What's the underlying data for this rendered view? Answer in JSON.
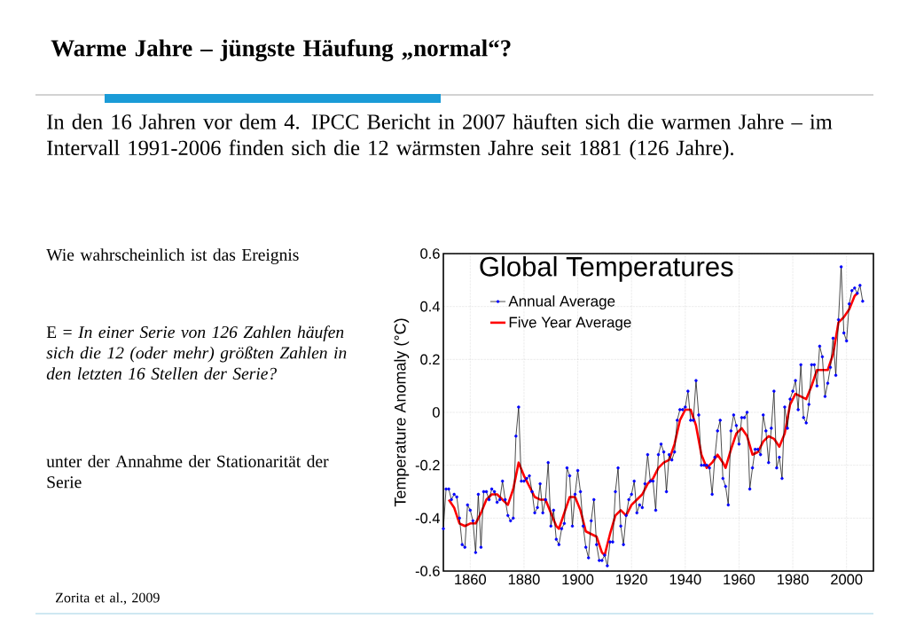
{
  "chart_data": {
    "type": "line",
    "title": "Global Temperatures",
    "ylabel": "Temperature Anomaly (°C)",
    "annotations": [
      "Warme Jahre – jüngste Häufung „normal“?",
      "In den 16 Jahren vor dem 4. IPCC Bericht in 2007 häuften sich die warmen Jahre – im Intervall 1991-2006 finden sich die 12 wärmsten Jahre seit 1881 (126 Jahre).",
      "Wie wahrscheinlich ist das Ereignis",
      "E = *In einer Serie von 126 Zahlen häufen sich die 12 (oder mehr) größten Zahlen in den letzten 16 Stellen der Serie?*",
      "unter der Annahme der Stationarität der Serie",
      "Zorita et al., 2009"
    ],
    "xlim": [
      1850,
      2010
    ],
    "ylim": [
      -0.6,
      0.6
    ],
    "xticks": [
      1860,
      1880,
      1900,
      1920,
      1940,
      1960,
      1980,
      2000
    ],
    "yticks": [
      -0.6,
      -0.4,
      -0.2,
      0,
      0.2,
      0.4,
      0.6
    ],
    "grid": true,
    "legend": "top left",
    "series": [
      {
        "name": "Annual Average",
        "color": "#0000ff",
        "marker": "circle",
        "x": [
          1850,
          1851,
          1852,
          1853,
          1854,
          1855,
          1856,
          1857,
          1858,
          1859,
          1860,
          1861,
          1862,
          1863,
          1864,
          1865,
          1866,
          1867,
          1868,
          1869,
          1870,
          1871,
          1872,
          1873,
          1874,
          1875,
          1876,
          1877,
          1878,
          1879,
          1880,
          1881,
          1882,
          1883,
          1884,
          1885,
          1886,
          1887,
          1888,
          1889,
          1890,
          1891,
          1892,
          1893,
          1894,
          1895,
          1896,
          1897,
          1898,
          1899,
          1900,
          1901,
          1902,
          1903,
          1904,
          1905,
          1906,
          1907,
          1908,
          1909,
          1910,
          1911,
          1912,
          1913,
          1914,
          1915,
          1916,
          1917,
          1918,
          1919,
          1920,
          1921,
          1922,
          1923,
          1924,
          1925,
          1926,
          1927,
          1928,
          1929,
          1930,
          1931,
          1932,
          1933,
          1934,
          1935,
          1936,
          1937,
          1938,
          1939,
          1940,
          1941,
          1942,
          1943,
          1944,
          1945,
          1946,
          1947,
          1948,
          1949,
          1950,
          1951,
          1952,
          1953,
          1954,
          1955,
          1956,
          1957,
          1958,
          1959,
          1960,
          1961,
          1962,
          1963,
          1964,
          1965,
          1966,
          1967,
          1968,
          1969,
          1970,
          1971,
          1972,
          1973,
          1974,
          1975,
          1976,
          1977,
          1978,
          1979,
          1980,
          1981,
          1982,
          1983,
          1984,
          1985,
          1986,
          1987,
          1988,
          1989,
          1990,
          1991,
          1992,
          1993,
          1994,
          1995,
          1996,
          1997,
          1998,
          1999,
          2000,
          2001,
          2002,
          2003,
          2004,
          2005,
          2006
        ],
        "values": [
          -0.44,
          -0.29,
          -0.29,
          -0.33,
          -0.31,
          -0.32,
          -0.4,
          -0.5,
          -0.51,
          -0.35,
          -0.37,
          -0.41,
          -0.53,
          -0.31,
          -0.51,
          -0.3,
          -0.3,
          -0.33,
          -0.29,
          -0.3,
          -0.34,
          -0.33,
          -0.26,
          -0.33,
          -0.39,
          -0.41,
          -0.4,
          -0.09,
          0.02,
          -0.26,
          -0.26,
          -0.25,
          -0.24,
          -0.3,
          -0.38,
          -0.36,
          -0.27,
          -0.38,
          -0.33,
          -0.19,
          -0.43,
          -0.37,
          -0.48,
          -0.5,
          -0.44,
          -0.42,
          -0.21,
          -0.24,
          -0.43,
          -0.31,
          -0.22,
          -0.3,
          -0.43,
          -0.51,
          -0.55,
          -0.41,
          -0.33,
          -0.5,
          -0.56,
          -0.56,
          -0.54,
          -0.58,
          -0.49,
          -0.49,
          -0.3,
          -0.21,
          -0.43,
          -0.5,
          -0.39,
          -0.33,
          -0.31,
          -0.26,
          -0.38,
          -0.35,
          -0.36,
          -0.27,
          -0.16,
          -0.26,
          -0.26,
          -0.37,
          -0.16,
          -0.12,
          -0.15,
          -0.3,
          -0.16,
          -0.18,
          -0.15,
          -0.03,
          0.01,
          0.01,
          0.02,
          0.08,
          -0.03,
          -0.03,
          0.12,
          -0.01,
          -0.2,
          -0.2,
          -0.2,
          -0.21,
          -0.31,
          -0.17,
          -0.07,
          -0.03,
          -0.25,
          -0.28,
          -0.35,
          -0.07,
          -0.01,
          -0.05,
          -0.12,
          -0.02,
          -0.02,
          0.0,
          -0.29,
          -0.21,
          -0.14,
          -0.14,
          -0.16,
          -0.01,
          -0.07,
          -0.19,
          -0.06,
          0.08,
          -0.21,
          -0.17,
          -0.25,
          0.02,
          -0.06,
          0.05,
          0.08,
          0.12,
          0.01,
          0.18,
          -0.02,
          -0.04,
          0.03,
          0.18,
          0.18,
          0.1,
          0.25,
          0.21,
          0.06,
          0.11,
          0.17,
          0.28,
          0.14,
          0.35,
          0.55,
          0.3,
          0.27,
          0.41,
          0.46,
          0.47,
          0.45,
          0.48,
          0.42
        ]
      },
      {
        "name": "Five Year Average",
        "color": "#ff0000",
        "marker": "none",
        "x": [
          1852,
          1854,
          1856,
          1858,
          1860,
          1862,
          1864,
          1866,
          1868,
          1870,
          1872,
          1874,
          1876,
          1878,
          1880,
          1882,
          1884,
          1886,
          1888,
          1890,
          1892,
          1893,
          1895,
          1897,
          1899,
          1901,
          1903,
          1905,
          1907,
          1909,
          1910,
          1912,
          1914,
          1916,
          1918,
          1920,
          1922,
          1924,
          1926,
          1928,
          1930,
          1932,
          1934,
          1936,
          1938,
          1940,
          1942,
          1944,
          1946,
          1948,
          1950,
          1952,
          1954,
          1955,
          1957,
          1959,
          1961,
          1963,
          1965,
          1967,
          1969,
          1971,
          1973,
          1975,
          1977,
          1979,
          1981,
          1983,
          1985,
          1987,
          1989,
          1991,
          1993,
          1995,
          1997,
          1999,
          2001,
          2003,
          2004
        ],
        "values": [
          -0.33,
          -0.36,
          -0.42,
          -0.43,
          -0.42,
          -0.42,
          -0.38,
          -0.33,
          -0.31,
          -0.31,
          -0.33,
          -0.35,
          -0.29,
          -0.19,
          -0.24,
          -0.28,
          -0.32,
          -0.33,
          -0.33,
          -0.38,
          -0.43,
          -0.44,
          -0.38,
          -0.32,
          -0.32,
          -0.37,
          -0.45,
          -0.46,
          -0.47,
          -0.53,
          -0.54,
          -0.46,
          -0.39,
          -0.37,
          -0.39,
          -0.35,
          -0.33,
          -0.31,
          -0.27,
          -0.25,
          -0.21,
          -0.19,
          -0.18,
          -0.12,
          -0.03,
          0.01,
          0.01,
          -0.05,
          -0.16,
          -0.21,
          -0.19,
          -0.16,
          -0.19,
          -0.21,
          -0.14,
          -0.08,
          -0.06,
          -0.09,
          -0.16,
          -0.15,
          -0.11,
          -0.09,
          -0.1,
          -0.13,
          -0.08,
          0.03,
          0.07,
          0.06,
          0.05,
          0.1,
          0.16,
          0.16,
          0.16,
          0.22,
          0.34,
          0.36,
          0.39,
          0.44,
          0.45
        ]
      }
    ]
  }
}
